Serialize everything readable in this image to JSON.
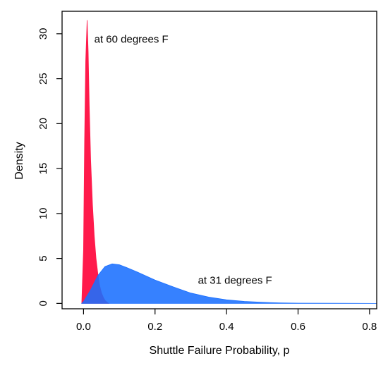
{
  "chart_data": {
    "type": "area",
    "xlabel": "Shuttle Failure Probability, p",
    "ylabel": "Density",
    "xlim": [
      -0.06,
      0.82
    ],
    "ylim": [
      -0.6,
      32.5
    ],
    "x_ticks": [
      0.0,
      0.2,
      0.4,
      0.6,
      0.8
    ],
    "x_tick_labels": [
      "0.0",
      "0.2",
      "0.4",
      "0.6",
      "0.8"
    ],
    "y_ticks": [
      0,
      5,
      10,
      15,
      20,
      25,
      30
    ],
    "y_tick_labels": [
      "0",
      "5",
      "10",
      "15",
      "20",
      "25",
      "30"
    ],
    "grid": false,
    "series": [
      {
        "color": "#ff1a4b",
        "x": [
          -0.005,
          0.0,
          0.003,
          0.006,
          0.01,
          0.013,
          0.016,
          0.02,
          0.025,
          0.03,
          0.035,
          0.04,
          0.045,
          0.05,
          0.055,
          0.06,
          0.065,
          0.07
        ],
        "y": [
          0,
          6,
          18,
          27,
          31.5,
          28,
          22,
          16,
          11,
          7.5,
          5,
          3.3,
          2,
          1.2,
          0.7,
          0.35,
          0.15,
          0
        ]
      },
      {
        "color": "#1a6fff",
        "x": [
          -0.005,
          0.0,
          0.02,
          0.04,
          0.06,
          0.08,
          0.1,
          0.12,
          0.15,
          0.2,
          0.25,
          0.3,
          0.35,
          0.4,
          0.45,
          0.5,
          0.55,
          0.6,
          0.7,
          0.82
        ],
        "y": [
          0,
          0.2,
          1.5,
          3.1,
          4.1,
          4.4,
          4.3,
          4.0,
          3.5,
          2.6,
          1.85,
          1.15,
          0.7,
          0.4,
          0.22,
          0.12,
          0.06,
          0.03,
          0.01,
          0
        ]
      }
    ],
    "annotations": [
      {
        "text": "at 60 degrees F",
        "x": 0.03,
        "y": 29
      },
      {
        "text": "at 31 degrees F",
        "x": 0.32,
        "y": 2.2
      }
    ]
  }
}
